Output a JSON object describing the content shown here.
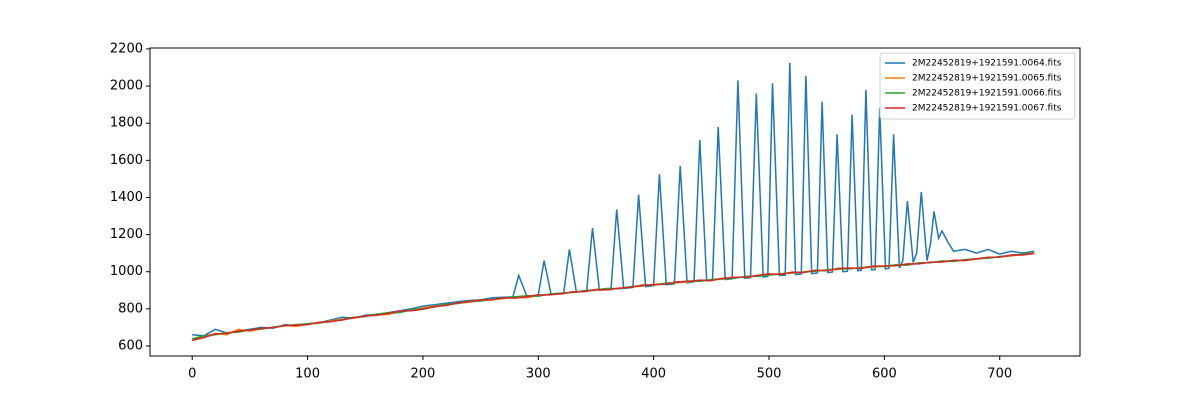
{
  "chart_data": {
    "type": "line",
    "xlim": [
      -36.6,
      769.6
    ],
    "ylim": [
      546,
      2205
    ],
    "xticks": [
      0,
      100,
      200,
      300,
      400,
      500,
      600,
      700
    ],
    "yticks": [
      600,
      800,
      1000,
      1200,
      1400,
      1600,
      1800,
      2000,
      2200
    ],
    "legend": "upper right",
    "series": [
      {
        "name": "2M22452819+1921591.0064.fits",
        "color": "#1f77b4",
        "x": [
          0,
          10,
          20,
          30,
          40,
          50,
          60,
          70,
          80,
          90,
          100,
          110,
          120,
          130,
          140,
          150,
          160,
          170,
          180,
          190,
          200,
          210,
          220,
          230,
          240,
          250,
          260,
          270,
          278,
          283,
          290,
          300,
          305,
          311,
          322,
          327,
          333,
          342,
          347,
          353,
          363,
          368,
          374,
          382,
          387,
          393,
          400,
          405,
          411,
          418,
          423,
          429,
          435,
          440,
          446,
          451,
          456,
          462,
          468,
          473,
          479,
          484,
          489,
          495,
          499,
          503,
          509,
          514,
          518,
          523,
          528,
          532,
          537,
          542,
          546,
          551,
          555,
          559,
          564,
          568,
          572,
          577,
          580,
          584,
          589,
          592,
          596,
          601,
          604,
          608,
          613,
          616,
          620,
          625,
          628,
          632,
          637,
          640,
          643,
          647,
          650,
          655,
          660,
          670,
          680,
          690,
          700,
          710,
          720,
          730
        ],
        "values": [
          660,
          655,
          690,
          670,
          680,
          690,
          700,
          695,
          715,
          710,
          720,
          725,
          740,
          755,
          750,
          765,
          770,
          780,
          790,
          800,
          815,
          822,
          830,
          838,
          845,
          848,
          860,
          862,
          865,
          980,
          868,
          875,
          1060,
          880,
          885,
          1120,
          890,
          898,
          1235,
          900,
          905,
          1335,
          910,
          915,
          1415,
          920,
          925,
          1525,
          930,
          935,
          1570,
          940,
          945,
          1710,
          950,
          955,
          1780,
          958,
          962,
          2030,
          965,
          968,
          1960,
          972,
          975,
          2015,
          980,
          982,
          2125,
          985,
          988,
          2055,
          990,
          993,
          1915,
          996,
          998,
          1740,
          1000,
          1003,
          1845,
          1005,
          1008,
          1980,
          1010,
          1012,
          1880,
          1015,
          1018,
          1740,
          1020,
          1060,
          1380,
          1050,
          1100,
          1430,
          1060,
          1150,
          1325,
          1180,
          1220,
          1160,
          1110,
          1120,
          1100,
          1120,
          1095,
          1110,
          1100,
          1110
        ]
      },
      {
        "name": "2M22452819+1921591.0065.fits",
        "color": "#ff7f0e",
        "x": [
          0,
          10,
          20,
          30,
          40,
          50,
          60,
          70,
          80,
          90,
          100,
          110,
          120,
          130,
          140,
          150,
          160,
          170,
          180,
          190,
          200,
          210,
          220,
          230,
          240,
          250,
          260,
          270,
          280,
          290,
          300,
          310,
          320,
          330,
          340,
          350,
          360,
          370,
          380,
          390,
          400,
          410,
          420,
          430,
          440,
          450,
          460,
          470,
          480,
          490,
          500,
          510,
          520,
          530,
          540,
          550,
          560,
          570,
          580,
          590,
          600,
          610,
          620,
          630,
          640,
          650,
          660,
          670,
          680,
          690,
          700,
          710,
          720,
          730
        ],
        "values": [
          632,
          650,
          668,
          660,
          690,
          680,
          692,
          700,
          712,
          705,
          718,
          722,
          735,
          745,
          750,
          760,
          768,
          770,
          785,
          792,
          805,
          815,
          820,
          830,
          835,
          845,
          850,
          855,
          862,
          860,
          872,
          878,
          880,
          890,
          895,
          900,
          905,
          910,
          918,
          922,
          932,
          935,
          940,
          945,
          952,
          955,
          960,
          968,
          972,
          978,
          985,
          990,
          992,
          1000,
          1005,
          1008,
          1012,
          1018,
          1020,
          1025,
          1032,
          1035,
          1040,
          1045,
          1050,
          1055,
          1060,
          1062,
          1068,
          1075,
          1080,
          1085,
          1092,
          1105
        ]
      },
      {
        "name": "2M22452819+1921591.0066.fits",
        "color": "#2ca02c",
        "x": [
          0,
          10,
          20,
          30,
          40,
          50,
          60,
          70,
          80,
          90,
          100,
          110,
          120,
          130,
          140,
          150,
          160,
          170,
          180,
          190,
          200,
          210,
          220,
          230,
          240,
          250,
          260,
          270,
          280,
          290,
          300,
          310,
          320,
          330,
          340,
          350,
          360,
          370,
          380,
          390,
          400,
          410,
          420,
          430,
          440,
          450,
          460,
          470,
          480,
          490,
          500,
          510,
          520,
          530,
          540,
          550,
          560,
          570,
          580,
          590,
          600,
          610,
          620,
          630,
          640,
          650,
          660,
          670,
          680,
          690,
          700,
          710,
          720,
          730
        ],
        "values": [
          638,
          655,
          660,
          672,
          675,
          688,
          690,
          702,
          708,
          715,
          720,
          725,
          730,
          742,
          755,
          758,
          772,
          778,
          780,
          795,
          800,
          810,
          825,
          828,
          840,
          842,
          852,
          858,
          865,
          870,
          868,
          880,
          885,
          888,
          898,
          902,
          910,
          908,
          920,
          925,
          928,
          938,
          942,
          950,
          948,
          958,
          962,
          965,
          975,
          975,
          982,
          988,
          995,
          998,
          1002,
          1010,
          1015,
          1015,
          1022,
          1028,
          1028,
          1038,
          1035,
          1048,
          1048,
          1058,
          1055,
          1065,
          1070,
          1072,
          1082,
          1088,
          1095,
          1100
        ]
      },
      {
        "name": "2M22452819+1921591.0067.fits",
        "color": "#d62728",
        "x": [
          0,
          10,
          20,
          30,
          40,
          50,
          60,
          70,
          80,
          90,
          100,
          110,
          120,
          130,
          140,
          150,
          160,
          170,
          180,
          190,
          200,
          210,
          220,
          230,
          240,
          250,
          260,
          270,
          280,
          290,
          300,
          310,
          320,
          330,
          340,
          350,
          360,
          370,
          380,
          390,
          400,
          410,
          420,
          430,
          440,
          450,
          460,
          470,
          480,
          490,
          500,
          510,
          520,
          530,
          540,
          550,
          560,
          570,
          580,
          590,
          600,
          610,
          620,
          630,
          640,
          650,
          660,
          670,
          680,
          690,
          700,
          710,
          720,
          730
        ],
        "values": [
          630,
          645,
          665,
          668,
          680,
          685,
          695,
          698,
          710,
          712,
          715,
          728,
          732,
          740,
          752,
          762,
          765,
          775,
          788,
          790,
          798,
          812,
          818,
          832,
          838,
          848,
          848,
          860,
          858,
          865,
          875,
          875,
          882,
          892,
          892,
          905,
          902,
          912,
          915,
          928,
          930,
          932,
          945,
          948,
          955,
          952,
          965,
          970,
          970,
          980,
          988,
          985,
          998,
          995,
          1008,
          1005,
          1018,
          1020,
          1018,
          1030,
          1030,
          1032,
          1042,
          1042,
          1052,
          1052,
          1062,
          1060,
          1070,
          1078,
          1078,
          1090,
          1090,
          1098
        ]
      }
    ]
  }
}
